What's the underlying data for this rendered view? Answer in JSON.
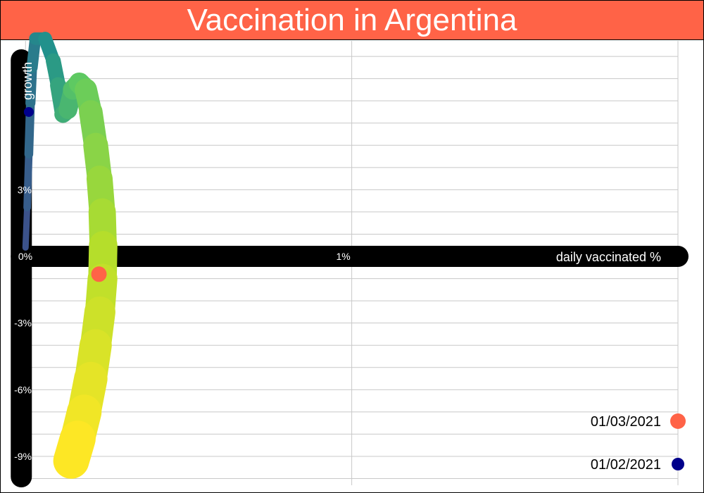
{
  "chart_data": {
    "type": "line",
    "title": "Vaccination in Argentina",
    "xlabel": "daily vaccinated %",
    "ylabel": "growth",
    "x_ticks": [
      {
        "value": 0,
        "label": "0%"
      },
      {
        "value": 1,
        "label": "1%"
      }
    ],
    "y_ticks": [
      {
        "value": 3,
        "label": "3%"
      },
      {
        "value": -3,
        "label": "-3%"
      },
      {
        "value": -6,
        "label": "-6%"
      },
      {
        "value": -9,
        "label": "-9%"
      }
    ],
    "xlim": [
      -0.02,
      2.0
    ],
    "ylim": [
      -10.3,
      9.7
    ],
    "grid": true,
    "colormap": [
      "#3b528b",
      "#21918c",
      "#5ec962",
      "#b5de2b",
      "#fde725"
    ],
    "points": [
      {
        "x": 0.0,
        "y": 0.4
      },
      {
        "x": 0.005,
        "y": 2.2
      },
      {
        "x": 0.01,
        "y": 4.6
      },
      {
        "x": 0.015,
        "y": 6.9
      },
      {
        "x": 0.02,
        "y": 8.5
      },
      {
        "x": 0.03,
        "y": 9.8
      },
      {
        "x": 0.06,
        "y": 9.8
      },
      {
        "x": 0.085,
        "y": 8.8
      },
      {
        "x": 0.1,
        "y": 7.7
      },
      {
        "x": 0.115,
        "y": 6.4
      },
      {
        "x": 0.13,
        "y": 6.6
      },
      {
        "x": 0.145,
        "y": 7.5
      },
      {
        "x": 0.165,
        "y": 7.8
      },
      {
        "x": 0.185,
        "y": 7.5
      },
      {
        "x": 0.2,
        "y": 6.5
      },
      {
        "x": 0.215,
        "y": 5.0
      },
      {
        "x": 0.227,
        "y": 3.5
      },
      {
        "x": 0.235,
        "y": 2.0
      },
      {
        "x": 0.238,
        "y": 0.5
      },
      {
        "x": 0.236,
        "y": -1.0
      },
      {
        "x": 0.228,
        "y": -2.5
      },
      {
        "x": 0.215,
        "y": -4.0
      },
      {
        "x": 0.2,
        "y": -5.5
      },
      {
        "x": 0.18,
        "y": -7.0
      },
      {
        "x": 0.16,
        "y": -8.2
      },
      {
        "x": 0.14,
        "y": -9.2
      }
    ],
    "markers": [
      {
        "label": "01/02/2021",
        "x": 0.01,
        "y": 6.5,
        "color": "#00008b"
      },
      {
        "label": "01/03/2021",
        "x": 0.225,
        "y": -0.8,
        "color": "#ff6347"
      }
    ]
  }
}
